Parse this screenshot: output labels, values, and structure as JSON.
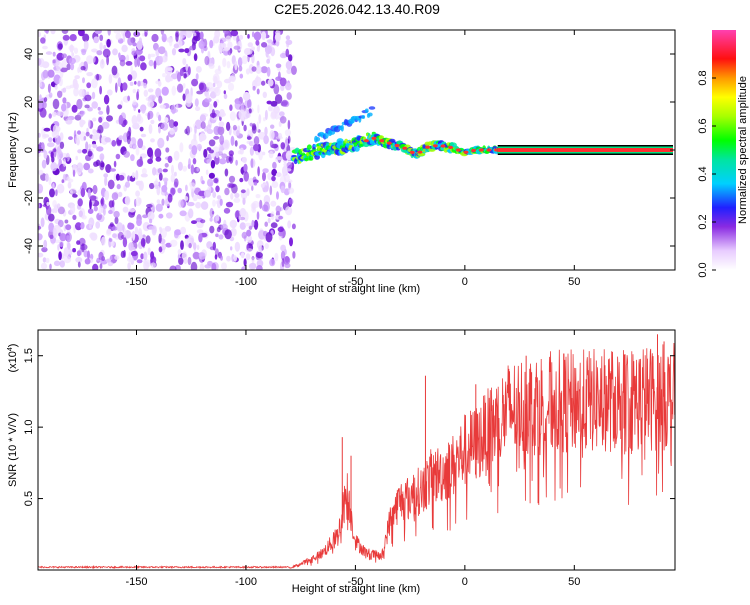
{
  "title": "C2E5.2026.042.13.40.R09",
  "chart_data": [
    {
      "type": "heatmap",
      "title": "C2E5.2026.042.13.40.R09",
      "xlabel": "Height of straight line (km)",
      "ylabel": "Frequency (Hz)",
      "xlim": [
        -195,
        96
      ],
      "ylim": [
        -50,
        50
      ],
      "x_ticks": [
        -150,
        -100,
        -50,
        0,
        50
      ],
      "x_tick_labels": [
        "-150",
        "-100",
        "-50",
        "0",
        "50"
      ],
      "y_ticks": [
        -40,
        -20,
        0,
        20,
        40
      ],
      "y_tick_labels": [
        "-40",
        "-20",
        "0",
        "20",
        "40"
      ],
      "noise_region_x": [
        -195,
        -78
      ],
      "signal_track": [
        {
          "x": -78,
          "y": -3
        },
        {
          "x": -70,
          "y": -1
        },
        {
          "x": -60,
          "y": 1
        },
        {
          "x": -50,
          "y": 2
        },
        {
          "x": -42,
          "y": 5
        },
        {
          "x": -35,
          "y": 3
        },
        {
          "x": -28,
          "y": 1
        },
        {
          "x": -22,
          "y": -2
        },
        {
          "x": -18,
          "y": 1
        },
        {
          "x": -12,
          "y": 2
        },
        {
          "x": -6,
          "y": 1
        },
        {
          "x": 0,
          "y": -1
        },
        {
          "x": 5,
          "y": 0
        },
        {
          "x": 12,
          "y": 0
        },
        {
          "x": 20,
          "y": 0
        },
        {
          "x": 50,
          "y": 0
        },
        {
          "x": 96,
          "y": 0
        }
      ],
      "colorbar": {
        "label": "Normalized spectral amplitude",
        "ticks": [
          0.0,
          0.2,
          0.4,
          0.6,
          0.8
        ],
        "tick_labels": [
          "0.0",
          "0.2",
          "0.4",
          "0.6",
          "0.8"
        ],
        "range": [
          0,
          1
        ]
      }
    },
    {
      "type": "line",
      "xlabel": "Height of straight line (km)",
      "ylabel": "SNR (10 * V/V)",
      "y_multiplier_label": "(x10",
      "y_multiplier_exp": "4",
      "y_multiplier_close": ")",
      "xlim": [
        -195,
        96
      ],
      "ylim": [
        0,
        1.68
      ],
      "x_ticks": [
        -150,
        -100,
        -50,
        0,
        50
      ],
      "x_tick_labels": [
        "-150",
        "-100",
        "-50",
        "0",
        "50"
      ],
      "y_ticks": [
        0.5,
        1.0,
        1.5
      ],
      "y_tick_labels": [
        "0.5",
        "1.0",
        "1.5"
      ],
      "series": [
        {
          "name": "SNR",
          "color": "#e83a3a",
          "envelope": [
            {
              "x": -195,
              "y": 0.02
            },
            {
              "x": -80,
              "y": 0.02
            },
            {
              "x": -75,
              "y": 0.05
            },
            {
              "x": -65,
              "y": 0.15
            },
            {
              "x": -58,
              "y": 0.3
            },
            {
              "x": -54,
              "y": 0.7
            },
            {
              "x": -50,
              "y": 0.25
            },
            {
              "x": -45,
              "y": 0.15
            },
            {
              "x": -38,
              "y": 0.12
            },
            {
              "x": -34,
              "y": 0.45
            },
            {
              "x": -30,
              "y": 0.6
            },
            {
              "x": -25,
              "y": 0.65
            },
            {
              "x": -20,
              "y": 0.7
            },
            {
              "x": -15,
              "y": 0.82
            },
            {
              "x": -10,
              "y": 0.85
            },
            {
              "x": -5,
              "y": 0.92
            },
            {
              "x": 0,
              "y": 1.05
            },
            {
              "x": 5,
              "y": 1.1
            },
            {
              "x": 10,
              "y": 1.2
            },
            {
              "x": 15,
              "y": 1.3
            },
            {
              "x": 20,
              "y": 1.4
            },
            {
              "x": 30,
              "y": 1.45
            },
            {
              "x": 40,
              "y": 1.47
            },
            {
              "x": 60,
              "y": 1.48
            },
            {
              "x": 80,
              "y": 1.5
            },
            {
              "x": 96,
              "y": 1.52
            }
          ],
          "spikes": [
            {
              "x": -56,
              "y": 0.93
            },
            {
              "x": -52,
              "y": 0.8
            },
            {
              "x": -18,
              "y": 1.36
            },
            {
              "x": 5,
              "y": 1.3
            },
            {
              "x": 28,
              "y": 1.5
            },
            {
              "x": 88,
              "y": 1.65
            },
            {
              "x": 91,
              "y": 1.6
            }
          ]
        }
      ]
    }
  ]
}
